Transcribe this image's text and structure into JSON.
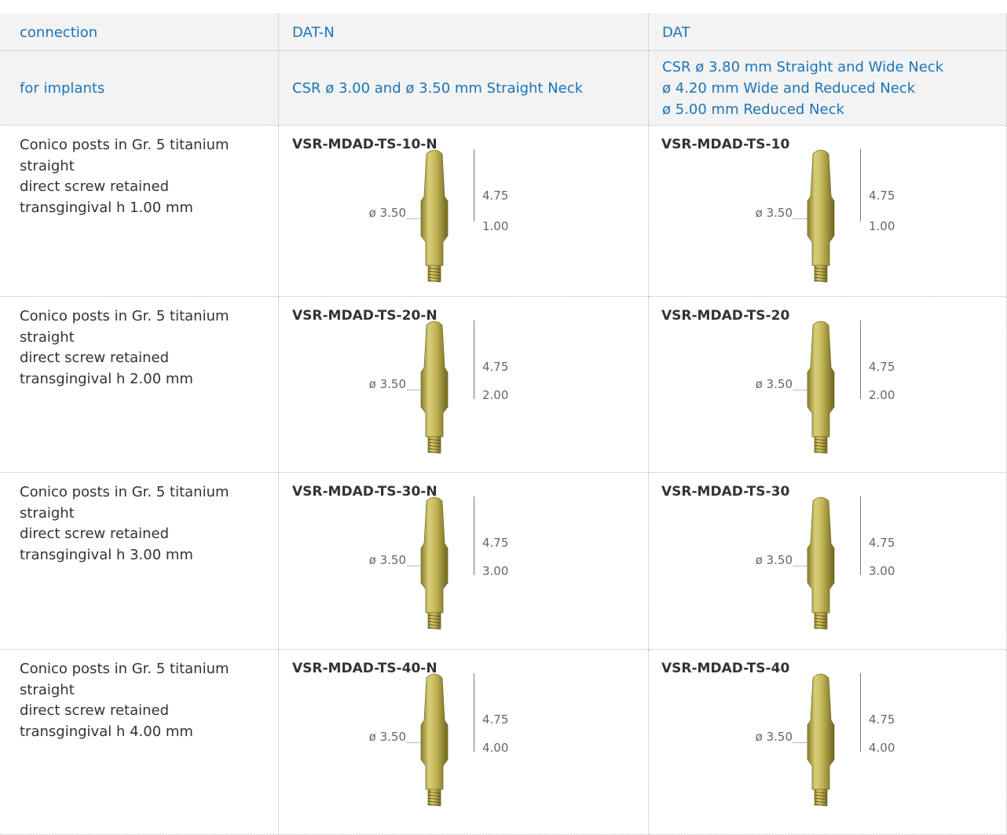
{
  "table": {
    "header": [
      [
        "connection",
        "DAT-N",
        "DAT"
      ],
      [
        "for implants",
        "CSR ø 3.00 and ø 3.50 mm Straight Neck",
        [
          "CSR ø 3.80 mm Straight and Wide Neck",
          "ø 4.20 mm Wide and Reduced Neck",
          "ø 5.00 mm Reduced Neck"
        ]
      ]
    ],
    "rows": [
      {
        "description": [
          "Conico posts in Gr. 5 titanium",
          "straight",
          "direct screw retained",
          "transgingival h 1.00 mm"
        ],
        "products": [
          {
            "code": "VSR-MDAD-TS-10-N",
            "diameter": "ø 3.50",
            "height": "4.75",
            "collar": "1.00"
          },
          {
            "code": "VSR-MDAD-TS-10",
            "diameter": "ø 3.50",
            "height": "4.75",
            "collar": "1.00"
          }
        ]
      },
      {
        "description": [
          "Conico posts in Gr. 5 titanium",
          "straight",
          "direct screw retained",
          "transgingival h 2.00 mm"
        ],
        "products": [
          {
            "code": "VSR-MDAD-TS-20-N",
            "diameter": "ø 3.50",
            "height": "4.75",
            "collar": "2.00"
          },
          {
            "code": "VSR-MDAD-TS-20",
            "diameter": "ø 3.50",
            "height": "4.75",
            "collar": "2.00"
          }
        ]
      },
      {
        "description": [
          "Conico posts in Gr. 5 titanium",
          "straight",
          "direct screw retained",
          "transgingival h 3.00 mm"
        ],
        "products": [
          {
            "code": "VSR-MDAD-TS-30-N",
            "diameter": "ø 3.50",
            "height": "4.75",
            "collar": "3.00"
          },
          {
            "code": "VSR-MDAD-TS-30",
            "diameter": "ø 3.50",
            "height": "4.75",
            "collar": "3.00"
          }
        ]
      },
      {
        "description": [
          "Conico posts in Gr. 5 titanium",
          "straight",
          "direct screw retained",
          "transgingival h 4.00 mm"
        ],
        "products": [
          {
            "code": "VSR-MDAD-TS-40-N",
            "diameter": "ø 3.50",
            "height": "4.75",
            "collar": "4.00"
          },
          {
            "code": "VSR-MDAD-TS-40",
            "diameter": "ø 3.50",
            "height": "4.75",
            "collar": "4.00"
          }
        ]
      }
    ]
  }
}
